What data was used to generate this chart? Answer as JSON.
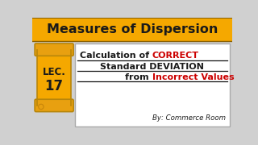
{
  "title": "Measures of Dispersion",
  "title_bg": "#F5A800",
  "title_color": "#1a1a1a",
  "main_bg": "#d0d0d0",
  "content_bg": "#ffffff",
  "lec_bg": "#F5A800",
  "lec_color": "#1a1a1a",
  "scroll_border": "#b8860b",
  "scroll_curl": "#d4940a",
  "line1_black": "Calculation of ",
  "line1_red": "CORRECT",
  "line2": "Standard DEVIATION",
  "line3_black": "from ",
  "line3_red": "Incorrect Values",
  "byline": "By: Commerce Room",
  "byline_color": "#222222",
  "underline_color": "#111111",
  "content_border": "#aaaaaa"
}
